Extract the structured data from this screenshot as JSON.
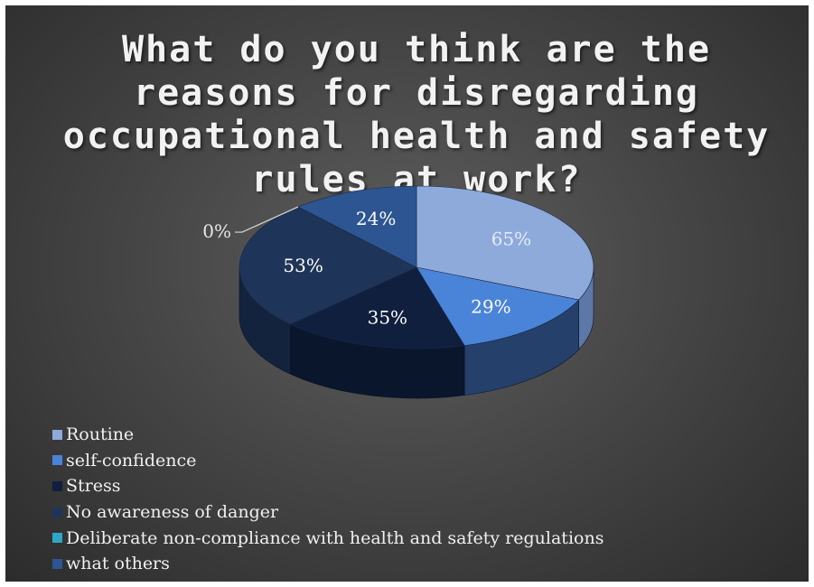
{
  "chart_data": {
    "type": "pie",
    "title": "What do you think are the reasons for disregarding occupational health and safety rules at work?",
    "three_d": true,
    "legend_position": "bottom",
    "slices": [
      {
        "label": "Routine",
        "value": 65,
        "value_label": "65%",
        "color": "#8eaadb",
        "side_color": "#5d78a6",
        "label_color": "#e6ecf5"
      },
      {
        "label": "self-confidence",
        "value": 29,
        "value_label": "29%",
        "color": "#4a84d8",
        "side_color": "#25416b",
        "label_color": "#ffffff"
      },
      {
        "label": "Stress",
        "value": 35,
        "value_label": "35%",
        "color": "#0f1f3d",
        "side_color": "#09162b",
        "label_color": "#ffffff"
      },
      {
        "label": "No awareness of danger",
        "value": 53,
        "value_label": "53%",
        "color": "#1e3459",
        "side_color": "#13233e",
        "label_color": "#ffffff"
      },
      {
        "label": "Deliberate non-compliance with health and safety regulations",
        "value": 0,
        "value_label": "0%",
        "color": "#30a6c6",
        "side_color": "#1f6f85",
        "label_color": "#e6e6e6"
      },
      {
        "label": "what others",
        "value": 24,
        "value_label": "24%",
        "color": "#2c5592",
        "side_color": "#1c355d",
        "label_color": "#ffffff"
      }
    ]
  }
}
